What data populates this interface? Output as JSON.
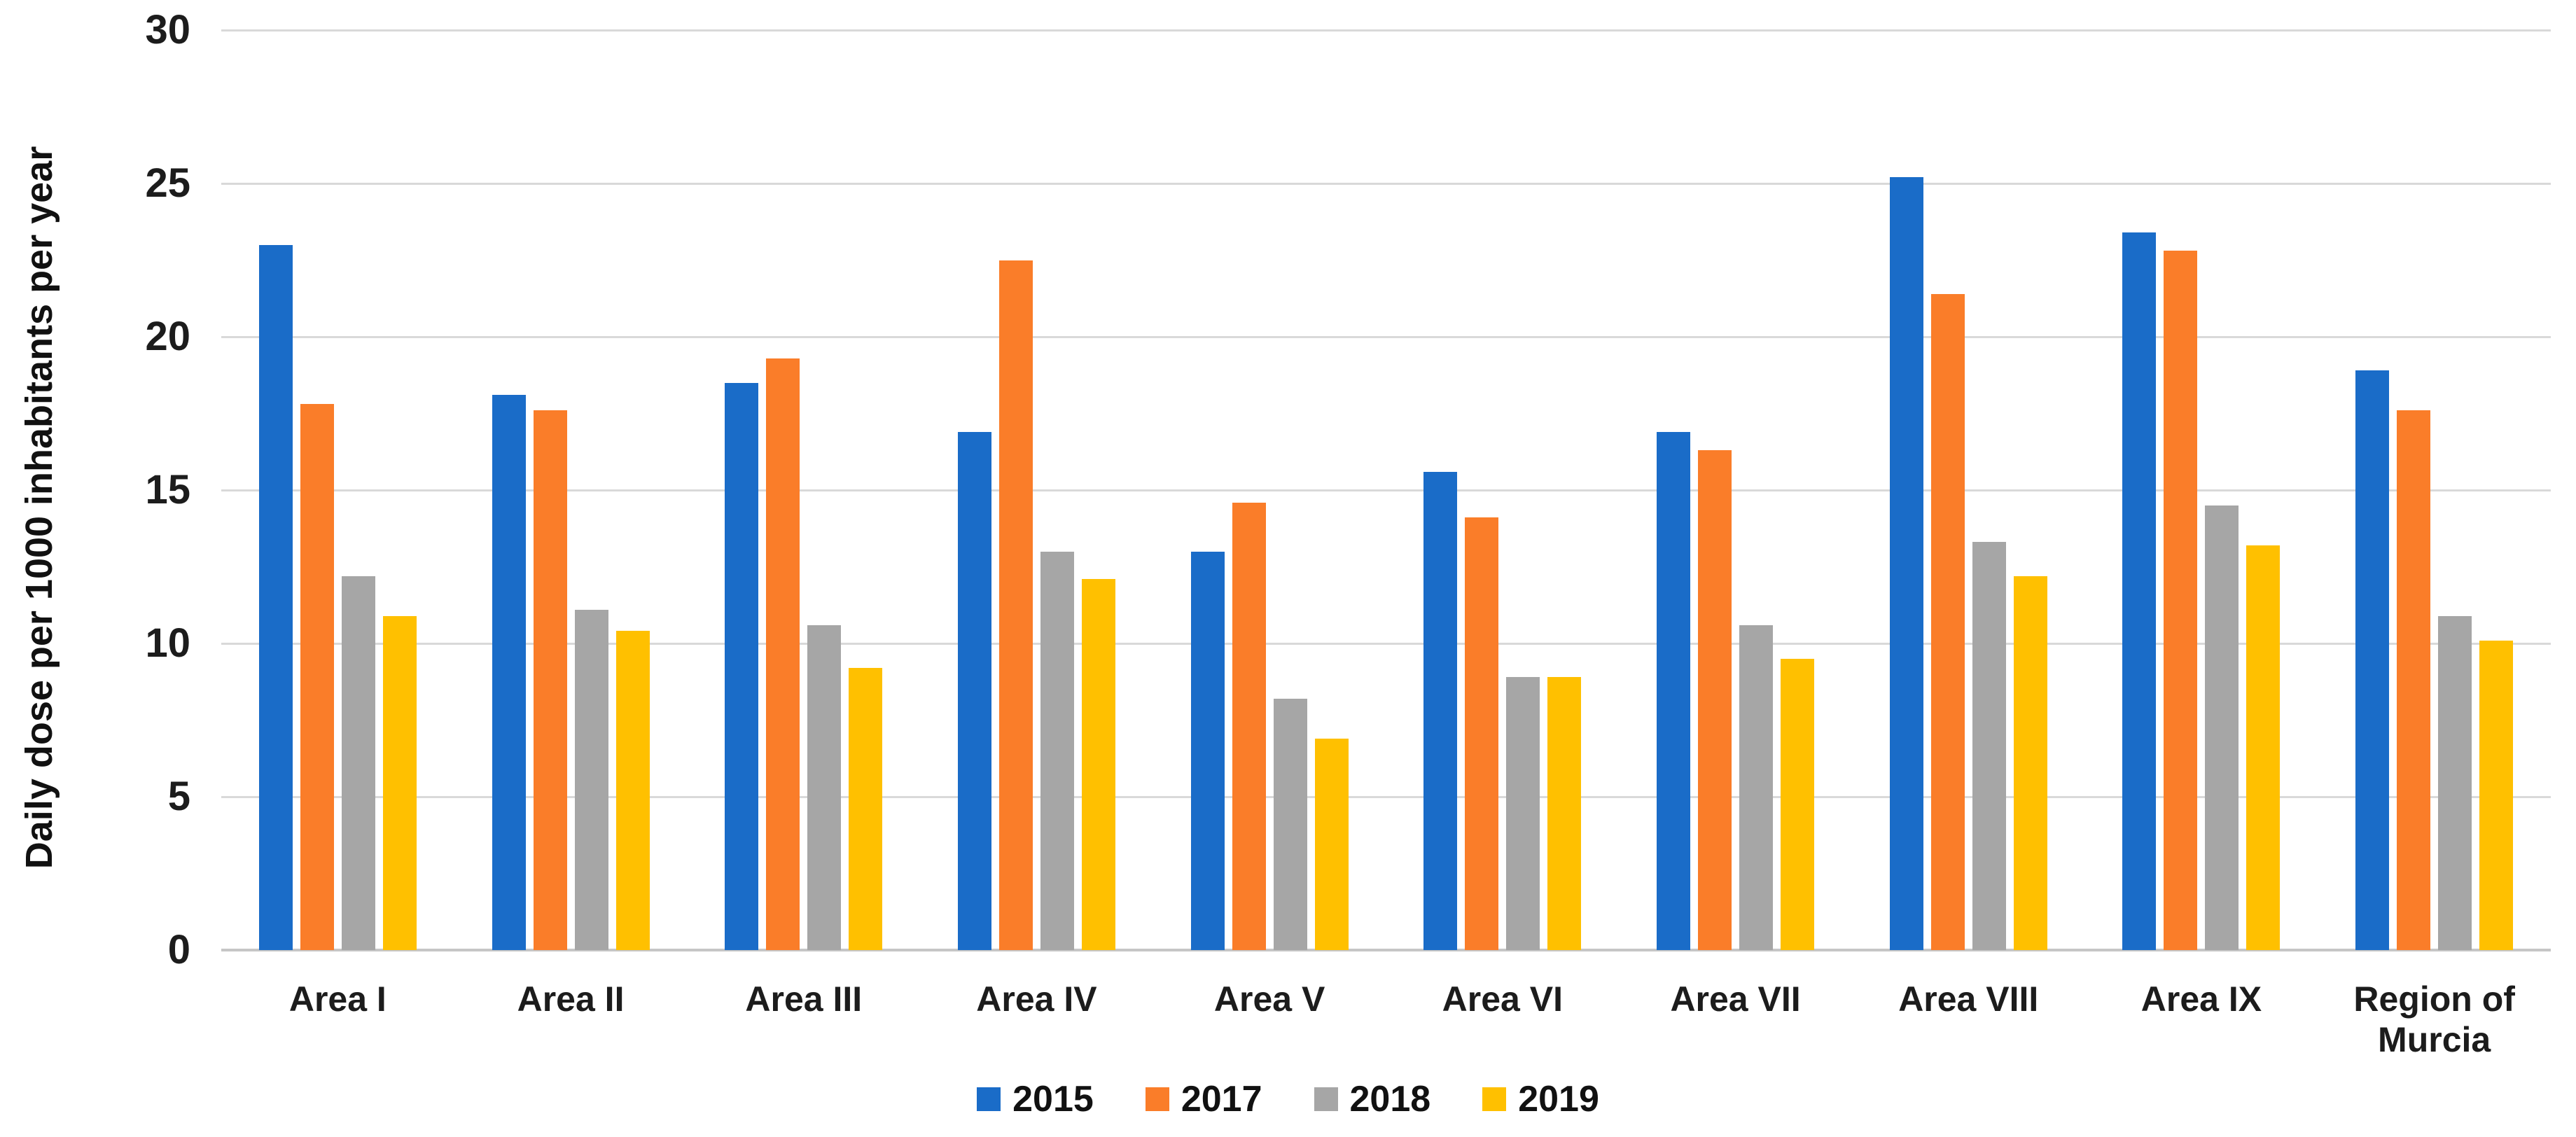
{
  "chart_data": {
    "type": "bar",
    "title": "",
    "ylabel": "Daily dose per 1000 inhabitants per year",
    "xlabel": "",
    "ylim": [
      0,
      30
    ],
    "yticks": [
      0,
      5,
      10,
      15,
      20,
      25,
      30
    ],
    "grid": true,
    "legend_position": "bottom",
    "categories": [
      "Area I",
      "Area II",
      "Area III",
      "Area IV",
      "Area V",
      "Area VI",
      "Area VII",
      "Area VIII",
      "Area IX",
      "Region of Murcia"
    ],
    "series": [
      {
        "name": "2015",
        "color": "#1a6cc8",
        "values": [
          23.0,
          18.1,
          18.5,
          16.9,
          13.0,
          15.6,
          16.9,
          25.2,
          23.4,
          18.9
        ]
      },
      {
        "name": "2017",
        "color": "#fa7d29",
        "values": [
          17.8,
          17.6,
          19.3,
          22.5,
          14.6,
          14.1,
          16.3,
          21.4,
          22.8,
          17.6
        ]
      },
      {
        "name": "2018",
        "color": "#a6a6a6",
        "values": [
          12.2,
          11.1,
          10.6,
          13.0,
          8.2,
          8.9,
          10.6,
          13.3,
          14.5,
          10.9
        ]
      },
      {
        "name": "2019",
        "color": "#ffc000",
        "values": [
          10.9,
          10.4,
          9.2,
          12.1,
          6.9,
          8.9,
          9.5,
          12.2,
          13.2,
          10.1
        ]
      }
    ],
    "colors": {
      "gridline": "#d9d9d9",
      "axis_line": "#c6c6c6",
      "text": "#1c1c1c"
    }
  }
}
